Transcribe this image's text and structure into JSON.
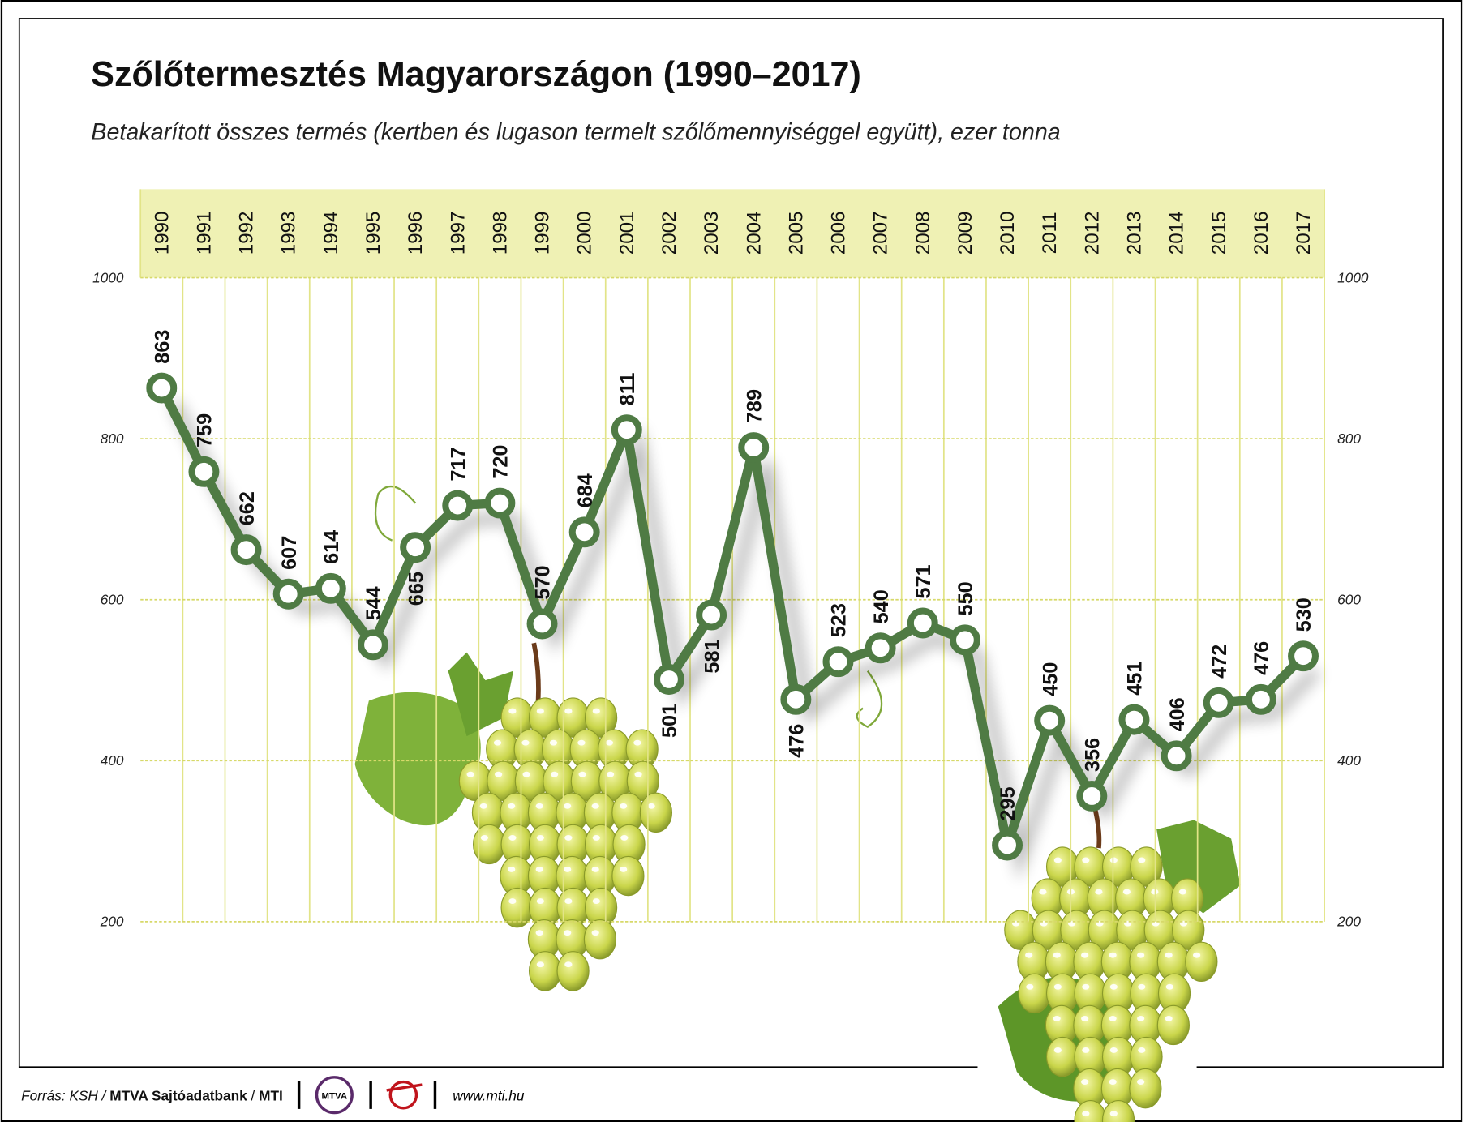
{
  "chart_data": {
    "type": "line",
    "title": "Szőlőtermesztés Magyarországon (1990–2017)",
    "subtitle": "Betakarított összes termés (kertben és lugason termelt szőlőmennyiséggel együtt), ezer tonna",
    "categories": [
      "1990",
      "1991",
      "1992",
      "1993",
      "1994",
      "1995",
      "1996",
      "1997",
      "1998",
      "1999",
      "2000",
      "2001",
      "2002",
      "2003",
      "2004",
      "2005",
      "2006",
      "2007",
      "2008",
      "2009",
      "2010",
      "2011",
      "2012",
      "2013",
      "2014",
      "2015",
      "2016",
      "2017"
    ],
    "values": [
      863,
      759,
      662,
      607,
      614,
      544,
      665,
      717,
      720,
      570,
      684,
      811,
      501,
      581,
      789,
      476,
      523,
      540,
      571,
      550,
      295,
      450,
      356,
      451,
      406,
      472,
      476,
      530
    ],
    "color": "#4f7b44",
    "ylim": [
      200,
      1000
    ],
    "yticks": [
      200,
      400,
      600,
      800,
      1000
    ],
    "grid": true
  },
  "footer": {
    "source": [
      "Forrás: KSH /",
      "MTVA Sajtóadatbank",
      "/",
      "MTI"
    ],
    "logo": "MTVA",
    "url": "www.mti.hu"
  }
}
